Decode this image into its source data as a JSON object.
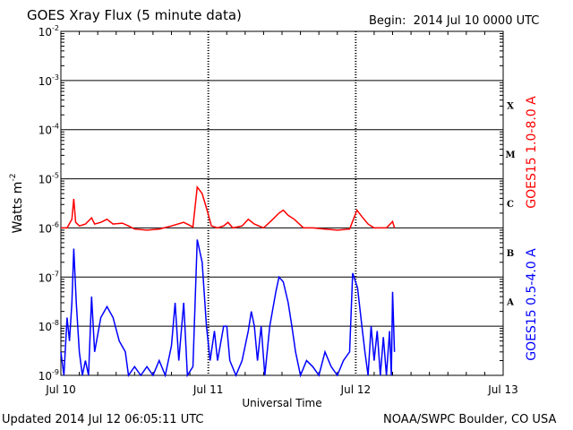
{
  "header": {
    "title": "GOES Xray Flux (5 minute data)",
    "begin_label": "Begin:",
    "begin_value": "2014 Jul 10 0000 UTC"
  },
  "footer": {
    "updated": "Updated 2014 Jul 12 06:05:11 UTC",
    "credit": "NOAA/SWPC Boulder, CO USA"
  },
  "chart_data": {
    "type": "line",
    "title": "GOES Xray Flux (5 minute data)",
    "xlabel": "Universal Time",
    "ylabel": "Watts m",
    "ylabel_superscript": "-2",
    "yscale": "log",
    "ylim": [
      1e-09,
      0.01
    ],
    "xlim": [
      0,
      72
    ],
    "x_unit": "hours since 2014 Jul 10 0000 UTC",
    "grid": true,
    "x_ticks": [
      {
        "value": 0,
        "label": "Jul 10"
      },
      {
        "value": 24,
        "label": "Jul 11"
      },
      {
        "value": 48,
        "label": "Jul 12"
      },
      {
        "value": 72,
        "label": "Jul 13"
      }
    ],
    "y_ticks": [
      {
        "exp": -9,
        "base": "10",
        "sup": "-9"
      },
      {
        "exp": -8,
        "base": "10",
        "sup": "-8"
      },
      {
        "exp": -7,
        "base": "10",
        "sup": "-7"
      },
      {
        "exp": -6,
        "base": "10",
        "sup": "-6"
      },
      {
        "exp": -5,
        "base": "10",
        "sup": "-5"
      },
      {
        "exp": -4,
        "base": "10",
        "sup": "-4"
      },
      {
        "exp": -3,
        "base": "10",
        "sup": "-3"
      },
      {
        "exp": -2,
        "base": "10",
        "sup": "-2"
      }
    ],
    "flare_classes": [
      {
        "label": "A",
        "exp": -7.5
      },
      {
        "label": "B",
        "exp": -6.5
      },
      {
        "label": "C",
        "exp": -5.5
      },
      {
        "label": "M",
        "exp": -4.5
      },
      {
        "label": "X",
        "exp": -3.5
      }
    ],
    "series": [
      {
        "name": "GOES15 1.0-8.0 A",
        "color": "#ff0000",
        "points": [
          [
            0,
            1e-06
          ],
          [
            1,
            1e-06
          ],
          [
            1.8,
            1.5e-06
          ],
          [
            2.1,
            3.9e-06
          ],
          [
            2.4,
            1.3e-06
          ],
          [
            3,
            1.1e-06
          ],
          [
            4,
            1.2e-06
          ],
          [
            5,
            1.6e-06
          ],
          [
            5.5,
            1.2e-06
          ],
          [
            6.5,
            1.3e-06
          ],
          [
            7.5,
            1.5e-06
          ],
          [
            8.5,
            1.2e-06
          ],
          [
            10,
            1.25e-06
          ],
          [
            11,
            1.1e-06
          ],
          [
            12,
            9.5e-07
          ],
          [
            14,
            9e-07
          ],
          [
            16,
            9.5e-07
          ],
          [
            18,
            1.1e-06
          ],
          [
            20,
            1.3e-06
          ],
          [
            21.5,
            1.05e-06
          ],
          [
            22.2,
            6.8e-06
          ],
          [
            23,
            5e-06
          ],
          [
            23.8,
            2.3e-06
          ],
          [
            24.5,
            1.1e-06
          ],
          [
            25.5,
            1e-06
          ],
          [
            26.5,
            1.1e-06
          ],
          [
            27.2,
            1.3e-06
          ],
          [
            28,
            1e-06
          ],
          [
            29.5,
            1.1e-06
          ],
          [
            30.5,
            1.5e-06
          ],
          [
            31.5,
            1.2e-06
          ],
          [
            33,
            1e-06
          ],
          [
            34.5,
            1.5e-06
          ],
          [
            35.5,
            2e-06
          ],
          [
            36.2,
            2.3e-06
          ],
          [
            37,
            1.8e-06
          ],
          [
            38,
            1.5e-06
          ],
          [
            39.5,
            1e-06
          ],
          [
            41,
            1e-06
          ],
          [
            43,
            9.5e-07
          ],
          [
            45,
            9e-07
          ],
          [
            47,
            9.5e-07
          ],
          [
            48.2,
            2.3e-06
          ],
          [
            49,
            1.7e-06
          ],
          [
            50,
            1.2e-06
          ],
          [
            51,
            1e-06
          ],
          [
            52,
            1e-06
          ],
          [
            53,
            1e-06
          ],
          [
            54,
            1.35e-06
          ],
          [
            54.3,
            1e-06
          ]
        ]
      },
      {
        "name": "GOES15 0.5-4.0 A",
        "color": "#0000ff",
        "points": [
          [
            0,
            3e-09
          ],
          [
            0.5,
            1e-09
          ],
          [
            1,
            1.5e-08
          ],
          [
            1.4,
            5e-09
          ],
          [
            1.8,
            3e-08
          ],
          [
            2.1,
            3.8e-07
          ],
          [
            2.5,
            3e-08
          ],
          [
            3,
            3e-09
          ],
          [
            3.5,
            1e-09
          ],
          [
            4,
            2e-09
          ],
          [
            4.5,
            1e-09
          ],
          [
            5,
            4e-08
          ],
          [
            5.5,
            3e-09
          ],
          [
            6.5,
            1.5e-08
          ],
          [
            7.5,
            2.5e-08
          ],
          [
            8.5,
            1.5e-08
          ],
          [
            9.5,
            5e-09
          ],
          [
            10.5,
            3e-09
          ],
          [
            11,
            1e-09
          ],
          [
            12,
            1.5e-09
          ],
          [
            13,
            1e-09
          ],
          [
            14,
            1.5e-09
          ],
          [
            15,
            1e-09
          ],
          [
            16,
            2e-09
          ],
          [
            17,
            1e-09
          ],
          [
            18,
            4e-09
          ],
          [
            18.6,
            3e-08
          ],
          [
            19.2,
            2e-09
          ],
          [
            20,
            3e-08
          ],
          [
            20.6,
            1e-09
          ],
          [
            21.5,
            1.5e-09
          ],
          [
            22.2,
            5.8e-07
          ],
          [
            23,
            2e-07
          ],
          [
            23.7,
            1e-08
          ],
          [
            24.3,
            2e-09
          ],
          [
            25,
            8e-09
          ],
          [
            25.5,
            2e-09
          ],
          [
            26.5,
            1e-08
          ],
          [
            27,
            1e-08
          ],
          [
            27.5,
            2e-09
          ],
          [
            28.5,
            1e-09
          ],
          [
            29.5,
            2e-09
          ],
          [
            30.5,
            8e-09
          ],
          [
            31,
            2e-08
          ],
          [
            31.5,
            1e-08
          ],
          [
            32,
            2e-09
          ],
          [
            32.6,
            1e-08
          ],
          [
            33.2,
            1e-09
          ],
          [
            34,
            1e-08
          ],
          [
            35,
            5e-08
          ],
          [
            35.5,
            1e-07
          ],
          [
            36.2,
            8e-08
          ],
          [
            37,
            3e-08
          ],
          [
            37.6,
            1e-08
          ],
          [
            38.2,
            3e-09
          ],
          [
            39,
            1e-09
          ],
          [
            40,
            2e-09
          ],
          [
            41,
            1.5e-09
          ],
          [
            42,
            1e-09
          ],
          [
            43,
            3e-09
          ],
          [
            44,
            1.5e-09
          ],
          [
            45,
            1e-09
          ],
          [
            46,
            2e-09
          ],
          [
            47,
            3e-09
          ],
          [
            47.5,
            1.2e-07
          ],
          [
            48.3,
            6e-08
          ],
          [
            49,
            1e-08
          ],
          [
            49.5,
            3e-09
          ],
          [
            50,
            1e-09
          ],
          [
            50.5,
            1e-08
          ],
          [
            51,
            2e-09
          ],
          [
            51.5,
            8e-09
          ],
          [
            52,
            1e-09
          ],
          [
            52.5,
            6e-09
          ],
          [
            53,
            1e-09
          ],
          [
            53.5,
            8e-09
          ],
          [
            53.8,
            1e-09
          ],
          [
            54,
            5e-08
          ],
          [
            54.3,
            3e-09
          ]
        ]
      }
    ]
  }
}
